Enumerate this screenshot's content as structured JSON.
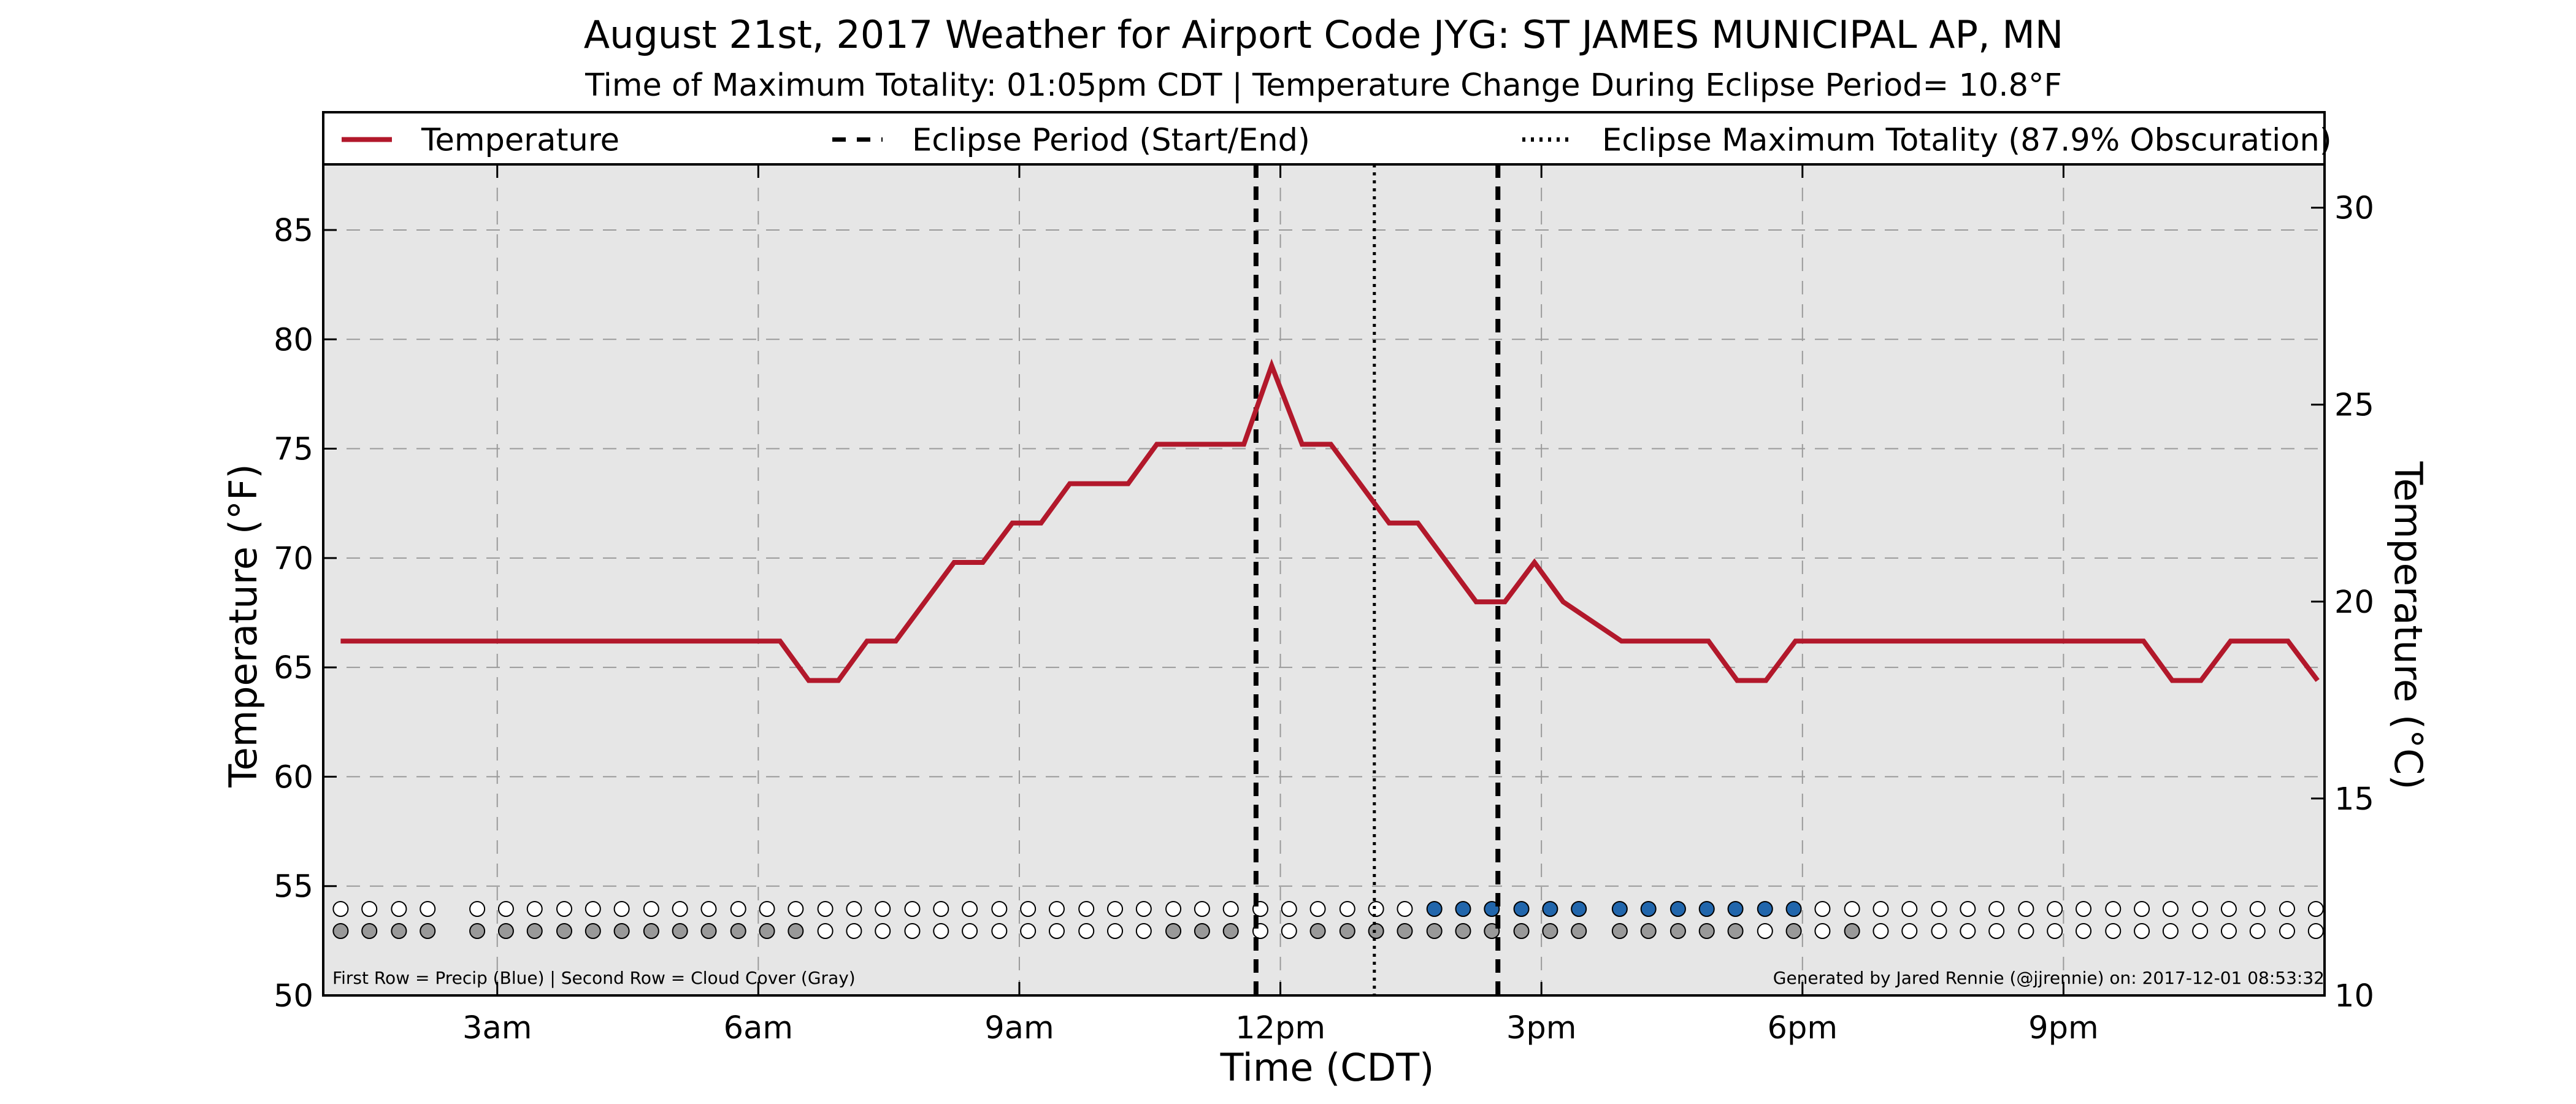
{
  "chart_data": {
    "type": "line",
    "title": "August 21st, 2017 Weather for Airport Code JYG: ST JAMES MUNICIPAL AP, MN",
    "subtitle": "Time of Maximum Totality: 01:05pm CDT | Temperature Change During Eclipse Period= 10.8°F",
    "xlabel": "Time (CDT)",
    "ylabel": "Temperature (°F)",
    "ylabel_right": "Temperature (°C)",
    "xlim": [
      1,
      24
    ],
    "ylim": [
      50,
      88
    ],
    "ylim_right": [
      10,
      31.1
    ],
    "grid": true,
    "legend_position": "top, outside plot area",
    "x_ticks": [
      {
        "x": 3,
        "label": "3am"
      },
      {
        "x": 6,
        "label": "6am"
      },
      {
        "x": 9,
        "label": "9am"
      },
      {
        "x": 12,
        "label": "12pm"
      },
      {
        "x": 15,
        "label": "3pm"
      },
      {
        "x": 18,
        "label": "6pm"
      },
      {
        "x": 21,
        "label": "9pm"
      }
    ],
    "y_ticks": [
      "50",
      "55",
      "60",
      "65",
      "70",
      "75",
      "80",
      "85"
    ],
    "y_ticks_right": [
      "10",
      "15",
      "20",
      "25",
      "30"
    ],
    "legend": [
      {
        "label": "Temperature",
        "style": "solid"
      },
      {
        "label": "Eclipse Period (Start/End)",
        "style": "dashed"
      },
      {
        "label": "Eclipse Maximum Totality (87.9% Obscuration)",
        "style": "dotted"
      }
    ],
    "series": [
      {
        "name": "Temperature",
        "color": "#b2182b",
        "points": [
          [
            1.2,
            66.2
          ],
          [
            6.25,
            66.2
          ],
          [
            6.58,
            64.4
          ],
          [
            6.92,
            64.4
          ],
          [
            7.25,
            66.2
          ],
          [
            7.58,
            66.2
          ],
          [
            8.25,
            69.8
          ],
          [
            8.58,
            69.8
          ],
          [
            8.92,
            71.6
          ],
          [
            9.25,
            71.6
          ],
          [
            9.58,
            73.4
          ],
          [
            10.25,
            73.4
          ],
          [
            10.58,
            75.2
          ],
          [
            11.58,
            75.2
          ],
          [
            11.9,
            78.8
          ],
          [
            12.25,
            75.2
          ],
          [
            12.58,
            75.2
          ],
          [
            13.25,
            71.6
          ],
          [
            13.58,
            71.6
          ],
          [
            14.25,
            68.0
          ],
          [
            14.58,
            68.0
          ],
          [
            14.92,
            69.8
          ],
          [
            15.25,
            68.0
          ],
          [
            15.92,
            66.2
          ],
          [
            16.92,
            66.2
          ],
          [
            17.25,
            64.4
          ],
          [
            17.58,
            64.4
          ],
          [
            17.92,
            66.2
          ],
          [
            21.92,
            66.2
          ],
          [
            22.25,
            64.4
          ],
          [
            22.58,
            64.4
          ],
          [
            22.92,
            66.2
          ],
          [
            23.58,
            66.2
          ],
          [
            23.92,
            64.4
          ]
        ]
      }
    ],
    "eclipse_start": 11.72,
    "eclipse_end": 14.5,
    "eclipse_max": 13.08,
    "dot_rows": {
      "label_precip": "precip",
      "label_cloud": "cloud cover",
      "precip_color": "#2166ac",
      "cloud_color": "#999999",
      "empty_color": "#ffffff",
      "x": [
        1.2,
        1.53,
        1.87,
        2.2,
        2.77,
        3.1,
        3.43,
        3.77,
        4.1,
        4.43,
        4.77,
        5.1,
        5.43,
        5.77,
        6.1,
        6.43,
        6.77,
        7.1,
        7.43,
        7.77,
        8.1,
        8.43,
        8.77,
        9.1,
        9.43,
        9.77,
        10.1,
        10.43,
        10.77,
        11.1,
        11.43,
        11.77,
        12.1,
        12.43,
        12.77,
        13.1,
        13.43,
        13.77,
        14.1,
        14.43,
        14.77,
        15.1,
        15.43,
        15.9,
        16.23,
        16.57,
        16.9,
        17.23,
        17.57,
        17.9,
        18.23,
        18.57,
        18.9,
        19.23,
        19.57,
        19.9,
        20.23,
        20.57,
        20.9,
        21.23,
        21.57,
        21.9,
        22.23,
        22.57,
        22.9,
        23.23,
        23.57,
        23.9
      ],
      "precip": [
        0,
        0,
        0,
        0,
        0,
        0,
        0,
        0,
        0,
        0,
        0,
        0,
        0,
        0,
        0,
        0,
        0,
        0,
        0,
        0,
        0,
        0,
        0,
        0,
        0,
        0,
        0,
        0,
        0,
        0,
        0,
        0,
        0,
        0,
        0,
        0,
        0,
        1,
        1,
        1,
        1,
        1,
        1,
        1,
        1,
        1,
        1,
        1,
        1,
        1,
        0,
        0,
        0,
        0,
        0,
        0,
        0,
        0,
        0,
        0,
        0,
        0,
        0,
        0,
        0,
        0,
        0,
        0
      ],
      "cloud": [
        1,
        1,
        1,
        1,
        1,
        1,
        1,
        1,
        1,
        1,
        1,
        1,
        1,
        1,
        1,
        1,
        0,
        0,
        0,
        0,
        0,
        0,
        0,
        0,
        0,
        0,
        0,
        0,
        1,
        1,
        1,
        0,
        0,
        1,
        1,
        1,
        1,
        1,
        1,
        1,
        1,
        1,
        1,
        1,
        1,
        1,
        1,
        1,
        0,
        1,
        0,
        1,
        0,
        0,
        0,
        0,
        0,
        0,
        0,
        0,
        0,
        0,
        0,
        0,
        0,
        0,
        0,
        0
      ]
    },
    "footnote_left": "First Row = Precip (Blue) | Second Row = Cloud Cover (Gray)",
    "footnote_right": "Generated by Jared Rennie (@jjrennie) on: 2017-12-01 08:53:32"
  }
}
